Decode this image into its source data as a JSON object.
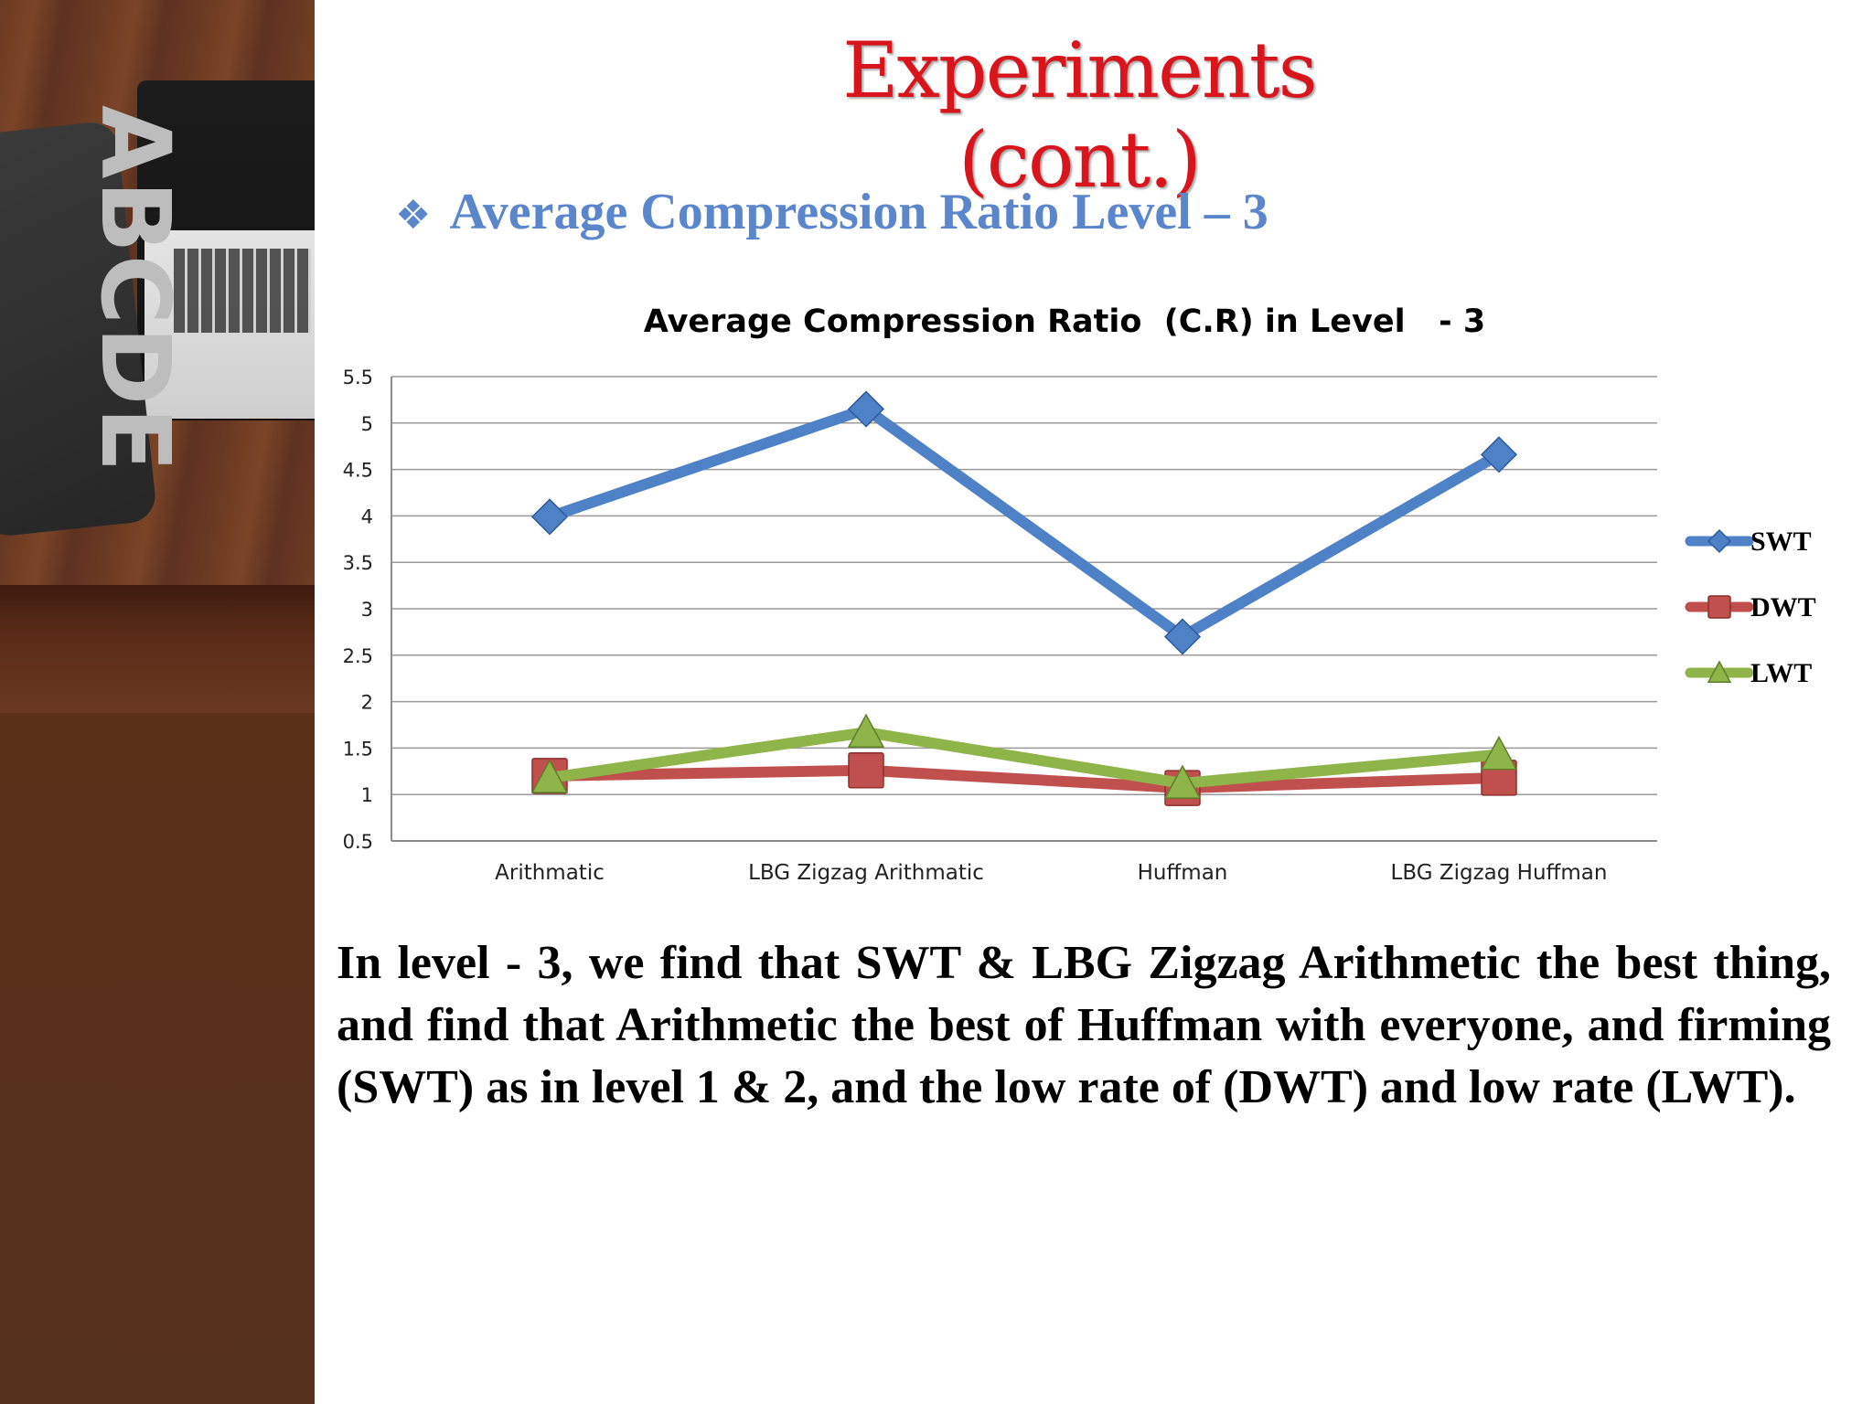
{
  "slide": {
    "title": "Experiments (cont.)",
    "subheading_bullet": "❖",
    "subheading": "Average Compression Ratio Level – 3",
    "body": "In level - 3, we find that SWT & LBG Zigzag Arithmetic the  best thing, and find that Arithmetic the best of Huffman with  everyone, and firming (SWT) as in level 1 & 2, and the low rate of (DWT) and low rate (LWT).",
    "decor_text": "ABCDE"
  },
  "chart_data": {
    "type": "line",
    "title": "Average Compression Ratio  (C.R) in Level   - 3",
    "xlabel": "",
    "ylabel": "",
    "categories": [
      "Arithmatic",
      "LBG Zigzag Arithmatic",
      "Huffman",
      "LBG Zigzag Huffman"
    ],
    "ylim": [
      0.5,
      5.5
    ],
    "yticks": [
      0.5,
      1,
      1.5,
      2,
      2.5,
      3,
      3.5,
      4,
      4.5,
      5,
      5.5
    ],
    "grid": true,
    "legend_position": "right",
    "series": [
      {
        "name": "SWT",
        "values": [
          3.99,
          5.15,
          2.7,
          4.66
        ],
        "color": "#4f81c7",
        "marker": "diamond"
      },
      {
        "name": "DWT",
        "values": [
          1.2,
          1.26,
          1.07,
          1.18
        ],
        "color": "#c0504d",
        "marker": "square"
      },
      {
        "name": "LWT",
        "values": [
          1.18,
          1.67,
          1.12,
          1.43
        ],
        "color": "#8fb54a",
        "marker": "triangle"
      }
    ]
  }
}
